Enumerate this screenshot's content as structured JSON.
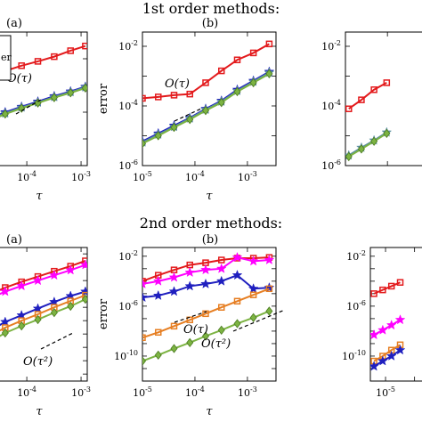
{
  "rows": [
    {
      "title": "1st order methods:"
    },
    {
      "title": "2nd order methods:"
    }
  ],
  "legend_fragment": "er",
  "chart_data": [
    {
      "type": "line",
      "panel_label": "(a)",
      "log_axes": true,
      "xlim": [
        2.2e-05,
        0.0013
      ],
      "ylim": [
        1e-06,
        0.1
      ],
      "x_tick_labels": [
        "10^-4",
        "10^-3"
      ],
      "y_tick_labels": [],
      "xlabel": "τ",
      "ylabel": "",
      "series": [
        {
          "color": "#e31a1c",
          "marker": "square",
          "x": [
            2.2e-05,
            4e-05,
            8e-05,
            0.00016,
            0.00032,
            0.00064,
            0.0012
          ],
          "y": [
            0.002,
            0.0035,
            0.0055,
            0.008,
            0.012,
            0.02,
            0.03
          ]
        },
        {
          "color": "#1f1fbf",
          "marker": "star",
          "x": [
            2.2e-05,
            4e-05,
            8e-05,
            0.00016,
            0.00032,
            0.00064,
            0.0012
          ],
          "y": [
            6e-05,
            0.0001,
            0.00016,
            0.00025,
            0.0004,
            0.0006,
            0.0009
          ]
        },
        {
          "color": "#5a8fa0",
          "marker": "star",
          "x": [
            2.2e-05,
            4e-05,
            8e-05,
            0.00016,
            0.00032,
            0.00064,
            0.0012
          ],
          "y": [
            5.5e-05,
            9e-05,
            0.00015,
            0.00023,
            0.00037,
            0.00056,
            0.00085
          ]
        },
        {
          "color": "#7cb342",
          "marker": "diamond",
          "x": [
            2.2e-05,
            4e-05,
            8e-05,
            0.00016,
            0.00032,
            0.00064,
            0.0012
          ],
          "y": [
            5e-05,
            8.5e-05,
            0.00014,
            0.00022,
            0.00035,
            0.00053,
            0.0008
          ]
        }
      ],
      "annotations": [
        {
          "text": "O(τ)"
        }
      ]
    },
    {
      "type": "line",
      "panel_label": "(b)",
      "log_axes": true,
      "xlim": [
        1e-05,
        0.0035
      ],
      "ylim": [
        1e-06,
        0.03
      ],
      "x_tick_labels": [
        "10^-5",
        "10^-4",
        "10^-3"
      ],
      "y_tick_labels": [
        "10^-6",
        "10^-4",
        "10^-2"
      ],
      "xlabel": "τ",
      "ylabel": "error",
      "series": [
        {
          "color": "#e31a1c",
          "marker": "square",
          "x": [
            1e-05,
            2e-05,
            4e-05,
            8e-05,
            0.00016,
            0.00032,
            0.00064,
            0.0013,
            0.0026
          ],
          "y": [
            0.00018,
            0.0002,
            0.00023,
            0.00025,
            0.0006,
            0.0015,
            0.0035,
            0.006,
            0.012
          ]
        },
        {
          "color": "#1f1fbf",
          "marker": "star",
          "x": [
            1e-05,
            2e-05,
            4e-05,
            8e-05,
            0.00016,
            0.00032,
            0.00064,
            0.0013,
            0.0026
          ],
          "y": [
            6.5e-06,
            1.2e-05,
            2.2e-05,
            4e-05,
            8e-05,
            0.00015,
            0.00035,
            0.0007,
            0.0014
          ]
        },
        {
          "color": "#5a8fa0",
          "marker": "star",
          "x": [
            1e-05,
            2e-05,
            4e-05,
            8e-05,
            0.00016,
            0.00032,
            0.00064,
            0.0013,
            0.0026
          ],
          "y": [
            6e-06,
            1.1e-05,
            2e-05,
            3.8e-05,
            7.5e-05,
            0.00014,
            0.00032,
            0.00065,
            0.0013
          ]
        },
        {
          "color": "#7cb342",
          "marker": "diamond",
          "x": [
            1e-05,
            2e-05,
            4e-05,
            8e-05,
            0.00016,
            0.00032,
            0.00064,
            0.0013,
            0.0026
          ],
          "y": [
            5.5e-06,
            1e-05,
            1.9e-05,
            3.5e-05,
            7e-05,
            0.00013,
            0.0003,
            0.0006,
            0.0012
          ]
        }
      ],
      "annotations": [
        {
          "text": "O(τ)"
        }
      ]
    },
    {
      "type": "line",
      "panel_label": "",
      "log_axes": true,
      "xlim": [
        1e-05,
        0.0035
      ],
      "ylim": [
        1e-06,
        0.03
      ],
      "x_tick_labels": [],
      "y_tick_labels": [
        "10^-6",
        "10^-4",
        "10^-2"
      ],
      "xlabel": "",
      "ylabel": "",
      "series": [
        {
          "color": "#e31a1c",
          "marker": "square",
          "x": [
            1.2e-05,
            2.4e-05,
            4.8e-05,
            9.6e-05
          ],
          "y": [
            8e-05,
            0.00016,
            0.00035,
            0.0006
          ]
        },
        {
          "color": "#5a8fa0",
          "marker": "star",
          "x": [
            1.2e-05,
            2.4e-05,
            4.8e-05,
            9.6e-05
          ],
          "y": [
            2.2e-06,
            4e-06,
            7e-06,
            1.3e-05
          ]
        },
        {
          "color": "#7cb342",
          "marker": "diamond",
          "x": [
            1.2e-05,
            2.4e-05,
            4.8e-05,
            9.6e-05
          ],
          "y": [
            2e-06,
            3.6e-06,
            6.5e-06,
            1.2e-05
          ]
        }
      ],
      "annotations": []
    },
    {
      "type": "line",
      "panel_label": "(a)",
      "log_axes": true,
      "xlim": [
        2.2e-05,
        0.0013
      ],
      "ylim": [
        3e-12,
        0.03
      ],
      "x_tick_labels": [
        "10^-4",
        "10^-3"
      ],
      "y_tick_labels": [],
      "xlabel": "τ",
      "ylabel": "",
      "series": [
        {
          "color": "#e31a1c",
          "marker": "square",
          "x": [
            2.2e-05,
            4e-05,
            8e-05,
            0.00016,
            0.00032,
            0.00064,
            0.0012
          ],
          "y": [
            1e-05,
            3e-05,
            8e-05,
            0.0002,
            0.0005,
            0.0012,
            0.003
          ]
        },
        {
          "color": "#ff00ff",
          "marker": "star",
          "x": [
            2.2e-05,
            4e-05,
            8e-05,
            0.00016,
            0.00032,
            0.00064,
            0.0012
          ],
          "y": [
            5e-06,
            1.5e-05,
            4e-05,
            0.0001,
            0.00025,
            0.0006,
            0.0015
          ]
        },
        {
          "color": "#1f1fbf",
          "marker": "star",
          "x": [
            2.2e-05,
            4e-05,
            8e-05,
            0.00016,
            0.00032,
            0.00064,
            0.0012
          ],
          "y": [
            2e-08,
            8e-08,
            2.5e-07,
            8e-07,
            2.5e-06,
            7e-06,
            1.5e-05
          ]
        },
        {
          "color": "#e67e22",
          "marker": "square",
          "x": [
            2.2e-05,
            4e-05,
            8e-05,
            0.00016,
            0.00032,
            0.00064,
            0.0012
          ],
          "y": [
            8e-09,
            3e-08,
            1e-07,
            3e-07,
            1e-06,
            3e-06,
            8e-06
          ]
        },
        {
          "color": "#7cb342",
          "marker": "diamond",
          "x": [
            2.2e-05,
            4e-05,
            8e-05,
            0.00016,
            0.00032,
            0.00064,
            0.0012
          ],
          "y": [
            3e-09,
            1.2e-08,
            4e-08,
            1.2e-07,
            4e-07,
            1.2e-06,
            4e-06
          ]
        }
      ],
      "annotations": [
        {
          "text": "O(τ²)"
        }
      ]
    },
    {
      "type": "line",
      "panel_label": "(b)",
      "log_axes": true,
      "xlim": [
        1e-05,
        0.0035
      ],
      "ylim": [
        1e-12,
        0.05
      ],
      "x_tick_labels": [
        "10^-5",
        "10^-4",
        "10^-3"
      ],
      "y_tick_labels": [
        "10^-10",
        "10^-6",
        "10^-2"
      ],
      "xlabel": "τ",
      "ylabel": "error",
      "series": [
        {
          "color": "#e31a1c",
          "marker": "square",
          "x": [
            1e-05,
            2e-05,
            4e-05,
            8e-05,
            0.00016,
            0.00032,
            0.00064,
            0.0013,
            0.0026
          ],
          "y": [
            0.0001,
            0.0003,
            0.0008,
            0.002,
            0.003,
            0.005,
            0.007,
            0.007,
            0.008
          ]
        },
        {
          "color": "#ff00ff",
          "marker": "star",
          "x": [
            1e-05,
            2e-05,
            4e-05,
            8e-05,
            0.00016,
            0.00032,
            0.00064,
            0.0013,
            0.0026
          ],
          "y": [
            6e-05,
            0.0001,
            0.0002,
            0.0005,
            0.0008,
            0.001,
            0.008,
            0.004,
            0.005
          ]
        },
        {
          "color": "#1f1fbf",
          "marker": "star",
          "x": [
            1e-05,
            2e-05,
            4e-05,
            8e-05,
            0.00016,
            0.00032,
            0.00064,
            0.0013,
            0.0026
          ],
          "y": [
            5e-06,
            7e-06,
            1.5e-05,
            4e-05,
            6e-05,
            0.0001,
            0.0003,
            2.5e-05,
            3e-05
          ]
        },
        {
          "color": "#e67e22",
          "marker": "square",
          "x": [
            1e-05,
            2e-05,
            4e-05,
            8e-05,
            0.00016,
            0.00032,
            0.00064,
            0.0013,
            0.0026
          ],
          "y": [
            3e-09,
            8e-09,
            2.5e-08,
            8e-08,
            2.5e-07,
            8e-07,
            2.5e-06,
            8e-06,
            2.5e-05
          ]
        },
        {
          "color": "#7cb342",
          "marker": "diamond",
          "x": [
            1e-05,
            2e-05,
            4e-05,
            8e-05,
            0.00016,
            0.00032,
            0.00064,
            0.0013,
            0.0026
          ],
          "y": [
            4e-11,
            1.2e-10,
            4e-10,
            1.2e-09,
            4e-09,
            1.2e-08,
            4e-08,
            1.2e-07,
            4e-07
          ]
        }
      ],
      "annotations": [
        {
          "text": "O(τ)"
        },
        {
          "text": "O(τ²)"
        }
      ]
    },
    {
      "type": "line",
      "panel_label": "",
      "log_axes": true,
      "xlim": [
        3e-06,
        0.0035
      ],
      "ylim": [
        1e-12,
        0.05
      ],
      "x_tick_labels": [
        "10^-5"
      ],
      "y_tick_labels": [
        "10^-10",
        "10^-6",
        "10^-2"
      ],
      "xlabel": "",
      "ylabel": "",
      "series": [
        {
          "color": "#e31a1c",
          "marker": "square",
          "x": [
            4e-06,
            8e-06,
            1.6e-05,
            3.2e-05
          ],
          "y": [
            1e-05,
            2e-05,
            4e-05,
            8e-05
          ]
        },
        {
          "color": "#ff00ff",
          "marker": "star",
          "x": [
            4e-06,
            8e-06,
            1.6e-05,
            3.2e-05
          ],
          "y": [
            5e-09,
            1.2e-08,
            3e-08,
            8e-08
          ]
        },
        {
          "color": "#e67e22",
          "marker": "square",
          "x": [
            4e-06,
            8e-06,
            1.6e-05,
            3.2e-05
          ],
          "y": [
            4e-11,
            1e-10,
            3e-10,
            8e-10
          ]
        },
        {
          "color": "#1f1fbf",
          "marker": "star",
          "x": [
            4e-06,
            8e-06,
            1.6e-05,
            3.2e-05
          ],
          "y": [
            1.5e-11,
            4e-11,
            1e-10,
            3e-10
          ]
        }
      ],
      "annotations": []
    }
  ]
}
